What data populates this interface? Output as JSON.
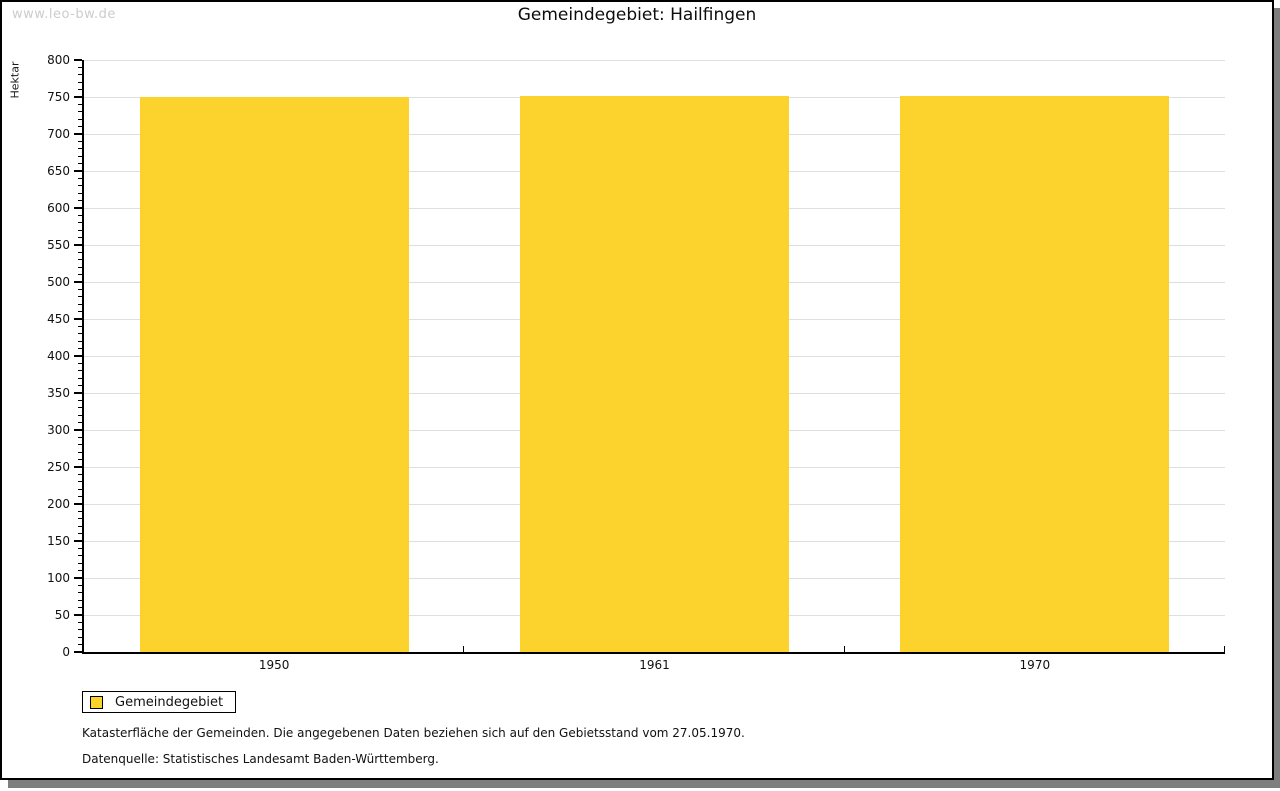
{
  "watermark": "www.leo-bw.de",
  "title": "Gemeindegebiet: Hailfingen",
  "legend": {
    "label": "Gemeindegebiet"
  },
  "notes": {
    "line1": "Katasterfläche der Gemeinden. Die angegebenen Daten beziehen sich auf den Gebietsstand vom 27.05.1970.",
    "line2": "Datenquelle: Statistisches Landesamt Baden-Württemberg."
  },
  "colors": {
    "bar": "#fcd32d",
    "grid": "#dfdfdf",
    "axis": "#000000",
    "watermark": "#cccccc",
    "shadow": "#7e7e7e"
  },
  "chart_data": {
    "type": "bar",
    "title": "Gemeindegebiet: Hailfingen",
    "categories": [
      "1950",
      "1961",
      "1970"
    ],
    "series": [
      {
        "name": "Gemeindegebiet",
        "values": [
          750,
          752,
          752
        ]
      }
    ],
    "xlabel": "",
    "ylabel": "Hektar",
    "ylim": [
      0,
      800
    ],
    "ytick_major": 50,
    "ytick_minor": 10,
    "grid": true,
    "legend_position": "bottom-left"
  }
}
